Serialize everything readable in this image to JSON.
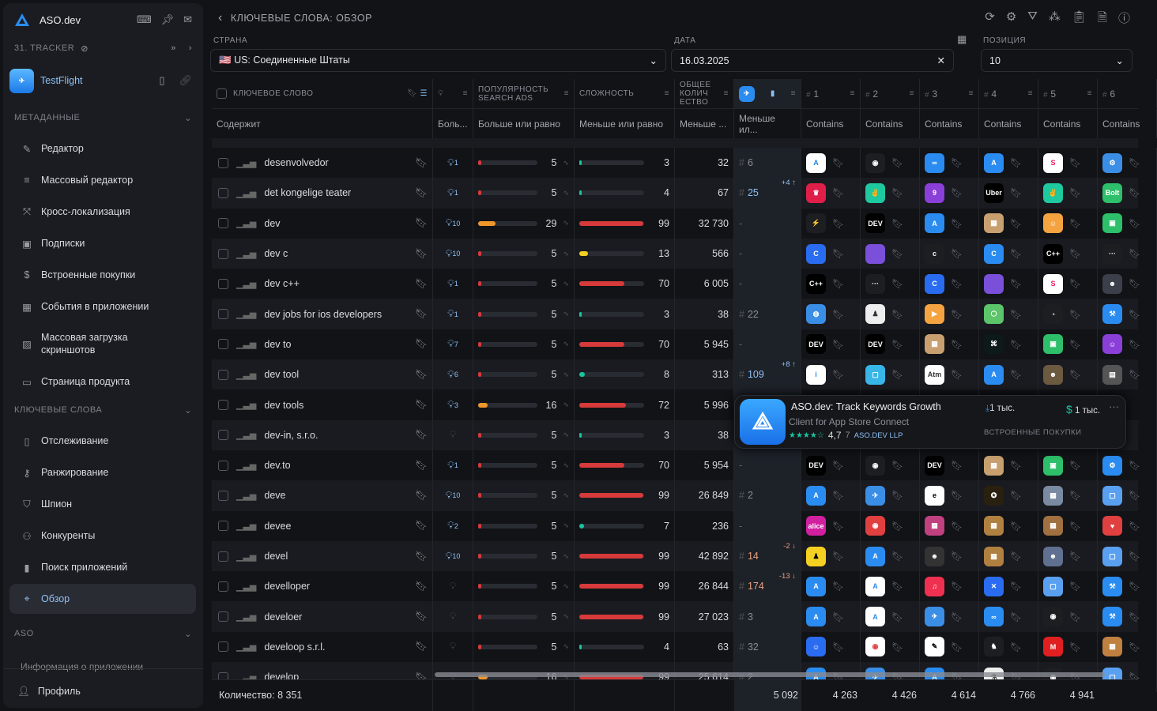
{
  "app": {
    "name": "ASO.dev",
    "tracker": "31. TRACKER",
    "app_name": "TestFlight"
  },
  "sidebar": {
    "sections": [
      {
        "label": "МЕТАДАННЫЕ"
      },
      {
        "label": "КЛЮЧЕВЫЕ СЛОВА"
      },
      {
        "label": "ASO"
      }
    ],
    "meta_items": [
      {
        "label": "Редактор",
        "icon": "pencil-icon"
      },
      {
        "label": "Массовый редактор",
        "icon": "list-edit-icon"
      },
      {
        "label": "Кросс-локализация",
        "icon": "cross-icon"
      },
      {
        "label": "Подписки",
        "icon": "subscription-icon"
      },
      {
        "label": "Встроенные покупки",
        "icon": "dollar-icon"
      },
      {
        "label": "События в приложении",
        "icon": "calendar-icon"
      },
      {
        "label": "Массовая загрузка скриншотов",
        "icon": "images-icon"
      },
      {
        "label": "Страница продукта",
        "icon": "image-icon"
      }
    ],
    "kw_items": [
      {
        "label": "Отслеживание",
        "icon": "bookmark-icon"
      },
      {
        "label": "Ранжирование",
        "icon": "key-icon"
      },
      {
        "label": "Шпион",
        "icon": "shield-icon"
      },
      {
        "label": "Конкуренты",
        "icon": "users-icon"
      },
      {
        "label": "Поиск приложений",
        "icon": "chart-icon"
      },
      {
        "label": "Обзор",
        "icon": "overview-icon"
      }
    ],
    "aso_partial": "Информация о приложении",
    "profile": "Профиль"
  },
  "header": {
    "title": "КЛЮЧЕВЫЕ СЛОВА: ОБЗОР"
  },
  "filters": {
    "country_label": "СТРАНА",
    "country_value": "US: Соединенные Штаты",
    "date_label": "ДАТА",
    "date_value": "16.03.2025",
    "position_label": "ПОЗИЦИЯ",
    "position_value": "10"
  },
  "table": {
    "headers": {
      "keyword": "КЛЮЧЕВОЕ СЛОВО",
      "popularity": "ПОПУЛЯРНОСТЬ SEARCH ADS",
      "difficulty": "СЛОЖНОСТЬ",
      "total": "ОБЩЕЕ КОЛИЧ ЕСТВО",
      "ranks": [
        "1",
        "2",
        "3",
        "4",
        "5",
        "6"
      ]
    },
    "filters": {
      "keyword": "Содержит",
      "bulb": "Боль...",
      "popularity": "Больше или равно",
      "difficulty": "Меньше или равно",
      "total": "Меньше ...",
      "rank": "Меньше ил...",
      "contains": "Contains"
    },
    "rows": [
      {
        "kw": "desenvolvedor",
        "bulb": "1",
        "pop": 5,
        "diff": 3,
        "total": "32",
        "rank": "6",
        "delta": "",
        "icons": [
          [
            "#fff",
            "A",
            "#1e88e5"
          ],
          [
            "#1d1e22",
            "◉"
          ],
          [
            "#2a8cf0",
            "∞"
          ],
          [
            "#2a8cf0",
            "A"
          ],
          [
            "#fff",
            "S",
            "#e91e63"
          ],
          [
            "#3a8ee6",
            "⚙"
          ]
        ]
      },
      {
        "kw": "det kongelige teater",
        "bulb": "1",
        "pop": 5,
        "diff": 4,
        "total": "67",
        "rank": "25",
        "delta": "+4 ↑",
        "icons": [
          [
            "#e01e4a",
            "♛"
          ],
          [
            "#1ec9a0",
            "✌"
          ],
          [
            "#8b3fd9",
            "9"
          ],
          [
            "#000",
            "Uber"
          ],
          [
            "#1ec9a0",
            "✌"
          ],
          [
            "#2dbf6a",
            "Bolt"
          ]
        ]
      },
      {
        "kw": "dev",
        "bulb": "10",
        "pop": 29,
        "diff": 99,
        "total": "32 730",
        "rank": "-",
        "delta": "",
        "icons": [
          [
            "#1d1e22",
            "⚡"
          ],
          [
            "#000",
            "DEV"
          ],
          [
            "#2a8cf0",
            "A"
          ],
          [
            "#c8a070",
            "▦"
          ],
          [
            "#f4a340",
            "☺"
          ],
          [
            "#2dbf6a",
            "▣"
          ]
        ]
      },
      {
        "kw": "dev c",
        "bulb": "10",
        "pop": 5,
        "diff": 13,
        "total": "566",
        "rank": "-",
        "delta": "",
        "icons": [
          [
            "#2a6cf0",
            "C"
          ],
          [
            "#7a4fd9",
            "</>"
          ],
          [
            "#1d1e22",
            "c"
          ],
          [
            "#2a8cf0",
            "C"
          ],
          [
            "#000",
            "C++"
          ],
          [
            "#1d1e22",
            "···"
          ]
        ]
      },
      {
        "kw": "dev c++",
        "bulb": "1",
        "pop": 5,
        "diff": 70,
        "total": "6 005",
        "rank": "-",
        "delta": "",
        "icons": [
          [
            "#000",
            "C++"
          ],
          [
            "#1d1e22",
            "···"
          ],
          [
            "#2a6cf0",
            "C"
          ],
          [
            "#7a4fd9",
            "</>"
          ],
          [
            "#fff",
            "S",
            "#e91e63"
          ],
          [
            "#3a3f4a",
            "☻"
          ]
        ]
      },
      {
        "kw": "dev jobs for ios developers",
        "bulb": "1",
        "pop": 5,
        "diff": 3,
        "total": "38",
        "rank": "22",
        "delta": "",
        "icons": [
          [
            "#3a8ee6",
            "◍"
          ],
          [
            "#eee",
            "♟",
            "#333"
          ],
          [
            "#f4a340",
            "▶"
          ],
          [
            "#5cc46a",
            "⬡"
          ],
          [
            "#1d1e22",
            "◔"
          ],
          [
            "#2a8cf0",
            "⚒"
          ]
        ]
      },
      {
        "kw": "dev to",
        "bulb": "7",
        "pop": 5,
        "diff": 70,
        "total": "5 945",
        "rank": "-",
        "delta": "",
        "icons": [
          [
            "#000",
            "DEV"
          ],
          [
            "#000",
            "DEV"
          ],
          [
            "#c8a070",
            "▦"
          ],
          [
            "#0e1a1a",
            "⌘"
          ],
          [
            "#2dbf6a",
            "▣"
          ],
          [
            "#8b3fd9",
            "☺"
          ]
        ]
      },
      {
        "kw": "dev tool",
        "bulb": "6",
        "pop": 5,
        "diff": 8,
        "total": "313",
        "rank": "109",
        "delta": "+8 ↑",
        "icons": [
          [
            "#fff",
            "i",
            "#2a8cf0"
          ],
          [
            "#38b6e8",
            "▢"
          ],
          [
            "#fff",
            "Atm",
            "#333"
          ],
          [
            "#2a8cf0",
            "A"
          ],
          [
            "#6b5a40",
            "☻"
          ],
          [
            "#555",
            "▤"
          ]
        ]
      },
      {
        "kw": "dev tools",
        "bulb": "3",
        "pop": 16,
        "diff": 72,
        "total": "5 996",
        "rank": "",
        "delta": "",
        "icons": []
      },
      {
        "kw": "dev-in, s.r.o.",
        "bulb": "",
        "pop": 5,
        "diff": 3,
        "total": "38",
        "rank": "",
        "delta": "",
        "icons": []
      },
      {
        "kw": "dev.to",
        "bulb": "1",
        "pop": 5,
        "diff": 70,
        "total": "5 954",
        "rank": "-",
        "delta": "",
        "icons": [
          [
            "#000",
            "DEV"
          ],
          [
            "#1d1e22",
            "◉"
          ],
          [
            "#000",
            "DEV"
          ],
          [
            "#c8a070",
            "▦"
          ],
          [
            "#2dbf6a",
            "▣"
          ],
          [
            "#2a8cf0",
            "⚙"
          ]
        ]
      },
      {
        "kw": "deve",
        "bulb": "10",
        "pop": 5,
        "diff": 99,
        "total": "26 849",
        "rank": "2",
        "delta": "",
        "icons": [
          [
            "#2a8cf0",
            "A"
          ],
          [
            "#3a8ee6",
            "✈"
          ],
          [
            "#fff",
            "e",
            "#000"
          ],
          [
            "#2a2010",
            "✪"
          ],
          [
            "#7a8aa0",
            "▦"
          ],
          [
            "#5aa0f0",
            "▢"
          ]
        ]
      },
      {
        "kw": "devee",
        "bulb": "2",
        "pop": 5,
        "diff": 7,
        "total": "236",
        "rank": "-",
        "delta": "",
        "icons": [
          [
            "#d020a0",
            "alice"
          ],
          [
            "#e04040",
            "◉"
          ],
          [
            "#c04080",
            "▦"
          ],
          [
            "#b08040",
            "▦"
          ],
          [
            "#a07040",
            "▦"
          ],
          [
            "#e04040",
            "♥"
          ]
        ]
      },
      {
        "kw": "devel",
        "bulb": "10",
        "pop": 5,
        "diff": 99,
        "total": "42 892",
        "rank": "14",
        "delta": "-2 ↓",
        "icons": [
          [
            "#f4d020",
            "♟",
            "#000"
          ],
          [
            "#2a8cf0",
            "A"
          ],
          [
            "#333",
            "☻"
          ],
          [
            "#b08040",
            "▦"
          ],
          [
            "#607090",
            "☻"
          ],
          [
            "#5aa0f0",
            "▢"
          ]
        ]
      },
      {
        "kw": "develloper",
        "bulb": "",
        "pop": 5,
        "diff": 99,
        "total": "26 844",
        "rank": "174",
        "delta": "-13 ↓",
        "icons": [
          [
            "#2a8cf0",
            "A"
          ],
          [
            "#fff",
            "A",
            "#2a8cf0"
          ],
          [
            "#f03050",
            "♫"
          ],
          [
            "#2a6cf0",
            "✕"
          ],
          [
            "#5aa0f0",
            "▢"
          ],
          [
            "#2a8cf0",
            "⚒"
          ]
        ]
      },
      {
        "kw": "develoer",
        "bulb": "",
        "pop": 5,
        "diff": 99,
        "total": "27 023",
        "rank": "3",
        "delta": "",
        "icons": [
          [
            "#2a8cf0",
            "A"
          ],
          [
            "#fff",
            "A",
            "#2a8cf0"
          ],
          [
            "#3a8ee6",
            "✈"
          ],
          [
            "#2a8cf0",
            "∞"
          ],
          [
            "#1d1e22",
            "◉"
          ],
          [
            "#2a8cf0",
            "⚒"
          ]
        ]
      },
      {
        "kw": "develoop s.r.l.",
        "bulb": "",
        "pop": 5,
        "diff": 4,
        "total": "63",
        "rank": "32",
        "delta": "",
        "icons": [
          [
            "#2a6cf0",
            "☺"
          ],
          [
            "#fff",
            "◉",
            "#e04040"
          ],
          [
            "#fff",
            "✎",
            "#000"
          ],
          [
            "#1d1e22",
            "♞"
          ],
          [
            "#e02020",
            "M"
          ],
          [
            "#c08040",
            "▦"
          ]
        ]
      },
      {
        "kw": "develop",
        "bulb": "",
        "pop": 16,
        "diff": 99,
        "total": "25 614",
        "rank": "2",
        "delta": "",
        "icons": [
          [
            "#2a8cf0",
            "A"
          ],
          [
            "#3a8ee6",
            "✈"
          ],
          [
            "#2a8cf0",
            "A"
          ],
          [
            "#eee",
            "⚗",
            "#333"
          ],
          [
            "#1d1e22",
            "◉"
          ],
          [
            "#5aa0f0",
            "▢"
          ]
        ]
      }
    ],
    "popup": {
      "title": "ASO.dev: Track Keywords Growth",
      "subtitle": "Client for App Store Connect",
      "rating": "4,7",
      "rating_count": "7",
      "developer": "ASO.DEV LLP",
      "downloads": "1 тыс.",
      "revenue": "1 тыс.",
      "iap": "ВСТРОЕННЫЕ ПОКУПКИ"
    },
    "footer": {
      "count": "Количество: 8 351",
      "rank_total": "5 092",
      "totals": [
        "4 263",
        "4 426",
        "4 614",
        "4 766",
        "4 941"
      ]
    }
  },
  "colors": {
    "accent": "#2a8cf0",
    "red": "#d63a3a",
    "green": "#19c4a0",
    "orange": "#f0962a",
    "yellow": "#f4d020"
  }
}
